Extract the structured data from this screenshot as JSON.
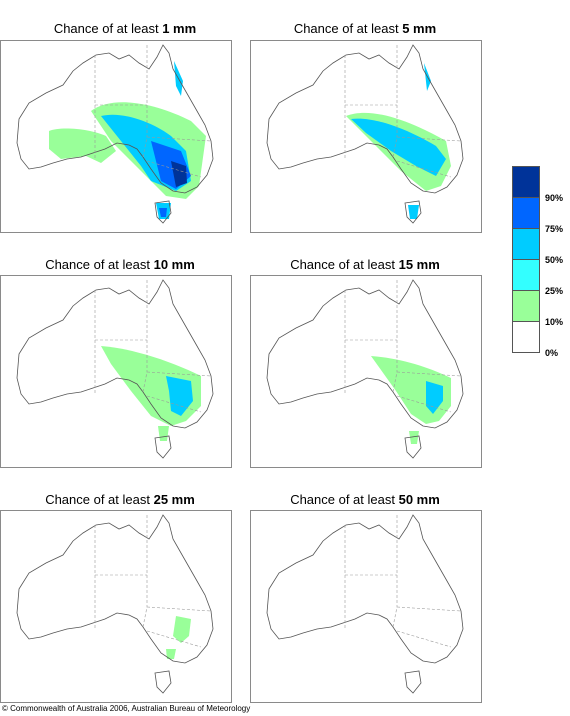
{
  "panels": [
    {
      "title_prefix": "Chance of at least ",
      "threshold": "1 mm"
    },
    {
      "title_prefix": "Chance of at least ",
      "threshold": "5 mm"
    },
    {
      "title_prefix": "Chance of at least ",
      "threshold": "10 mm"
    },
    {
      "title_prefix": "Chance of at least ",
      "threshold": "15 mm"
    },
    {
      "title_prefix": "Chance of at least ",
      "threshold": "25 mm"
    },
    {
      "title_prefix": "Chance of at least ",
      "threshold": "50 mm"
    }
  ],
  "legend": {
    "colors": [
      "#003399",
      "#0066ff",
      "#00ccff",
      "#33ffff",
      "#99ff99",
      "#ffffff"
    ],
    "labels": [
      "90%",
      "75%",
      "50%",
      "25%",
      "10%",
      "0%"
    ]
  },
  "copyright": "© Commonwealth of Australia 2006, Australian Bureau of Meteorology"
}
